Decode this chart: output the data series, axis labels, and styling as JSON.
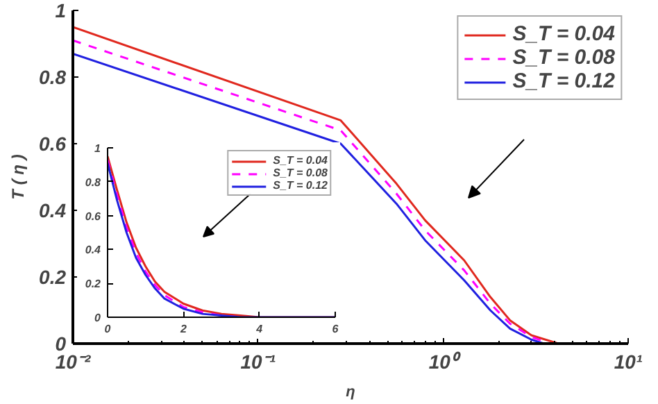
{
  "chart_data": [
    {
      "type": "line",
      "xlabel": "η",
      "ylabel": "T ( η )",
      "log": "x",
      "xlim": [
        0.01,
        10
      ],
      "ylim": [
        0,
        1
      ],
      "xticks": [
        {
          "value": 0.01,
          "label": "10⁻²"
        },
        {
          "value": 0.1,
          "label": "10⁻¹"
        },
        {
          "value": 1,
          "label": "10⁰"
        },
        {
          "value": 10,
          "label": "10¹"
        }
      ],
      "yticks": [
        0,
        0.2,
        0.4,
        0.6,
        0.8,
        1
      ],
      "grid": false,
      "legend": "top right",
      "series": [
        {
          "name": "S_T = 0.04",
          "color": "#e0281e",
          "line_style": "solid",
          "x": [
            0.01,
            0.28,
            0.56,
            0.8,
            1.3,
            1.8,
            2.3,
            3,
            4.2,
            10
          ],
          "values": [
            0.95,
            0.67,
            0.48,
            0.37,
            0.25,
            0.14,
            0.07,
            0.025,
            0,
            0
          ]
        },
        {
          "name": "S_T = 0.08",
          "color": "#ff00ff",
          "line_style": "dashed",
          "x": [
            0.01,
            0.28,
            0.56,
            0.8,
            1.3,
            1.8,
            2.3,
            3,
            3.8,
            10
          ],
          "values": [
            0.91,
            0.64,
            0.45,
            0.34,
            0.22,
            0.12,
            0.06,
            0.02,
            0,
            0
          ]
        },
        {
          "name": "S_T = 0.12",
          "color": "#2020e0",
          "line_style": "solid",
          "x": [
            0.01,
            0.28,
            0.56,
            0.8,
            1.3,
            1.8,
            2.3,
            3,
            3.5,
            10
          ],
          "values": [
            0.87,
            0.6,
            0.42,
            0.31,
            0.19,
            0.1,
            0.045,
            0.012,
            0,
            0
          ]
        }
      ]
    },
    {
      "type": "line",
      "xlim": [
        0,
        6
      ],
      "ylim": [
        0,
        1
      ],
      "xticks": [
        0,
        2,
        4,
        6
      ],
      "yticks": [
        0,
        0.2,
        0.4,
        0.6,
        0.8,
        1
      ],
      "grid": false,
      "legend": "top right",
      "series": [
        {
          "name": "S_T = 0.04",
          "color": "#e0281e",
          "line_style": "solid",
          "x": [
            0,
            0.25,
            0.5,
            0.75,
            1,
            1.25,
            1.5,
            2,
            2.5,
            3,
            3.5,
            4,
            6
          ],
          "values": [
            0.95,
            0.75,
            0.56,
            0.41,
            0.3,
            0.21,
            0.15,
            0.08,
            0.04,
            0.02,
            0.01,
            0,
            0
          ]
        },
        {
          "name": "S_T = 0.08",
          "color": "#ff00ff",
          "line_style": "dashed",
          "x": [
            0,
            0.25,
            0.5,
            0.75,
            1,
            1.25,
            1.5,
            2,
            2.5,
            3,
            3.5
          ],
          "values": [
            0.93,
            0.72,
            0.53,
            0.38,
            0.27,
            0.19,
            0.13,
            0.06,
            0.03,
            0.01,
            0
          ]
        },
        {
          "name": "S_T = 0.12",
          "color": "#2020e0",
          "line_style": "solid",
          "x": [
            0,
            0.25,
            0.5,
            0.75,
            1,
            1.25,
            1.5,
            2,
            2.5,
            3,
            3.5,
            4,
            6
          ],
          "values": [
            0.91,
            0.69,
            0.5,
            0.35,
            0.25,
            0.17,
            0.11,
            0.05,
            0.02,
            0.01,
            0,
            0,
            0
          ]
        }
      ]
    }
  ]
}
